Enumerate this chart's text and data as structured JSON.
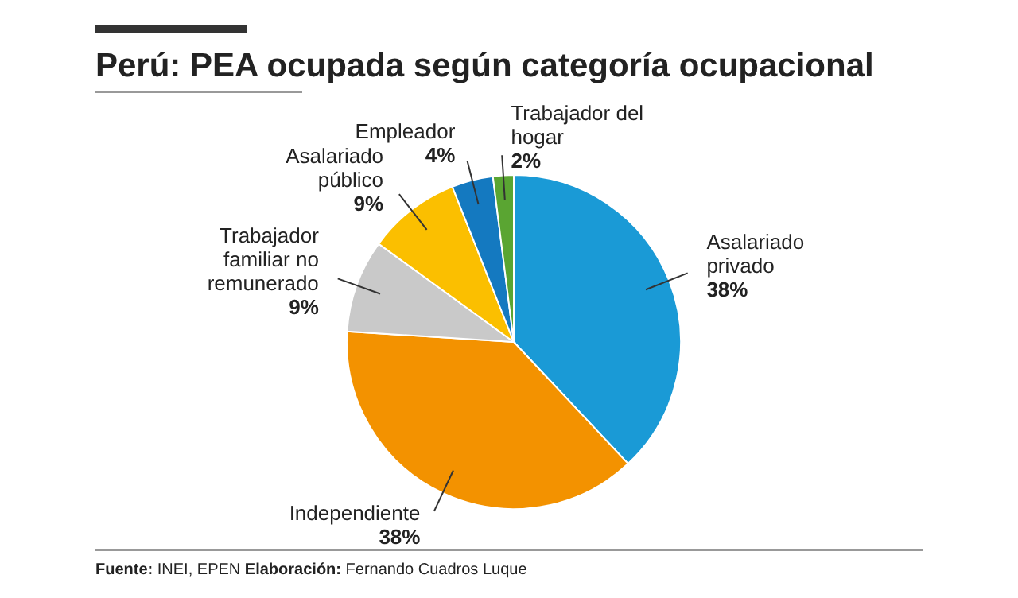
{
  "chart_data": {
    "type": "pie",
    "title": "Perú: PEA ocupada según categoría ocupacional",
    "categories": [
      "Asalariado privado",
      "Independiente",
      "Trabajador familiar no remunerado",
      "Asalariado público",
      "Empleador",
      "Trabajador del hogar"
    ],
    "values": [
      38,
      38,
      9,
      9,
      4,
      2
    ],
    "value_labels": [
      "38%",
      "38%",
      "9%",
      "9%",
      "4%",
      "2%"
    ],
    "colors": [
      "#1a9ad6",
      "#f39200",
      "#c9c9c9",
      "#fbbf00",
      "#1479c0",
      "#5aa532"
    ],
    "annotations": [
      "Fuente: INEI, EPEN  Elaboración: Fernando Cuadros Luque"
    ]
  }
}
